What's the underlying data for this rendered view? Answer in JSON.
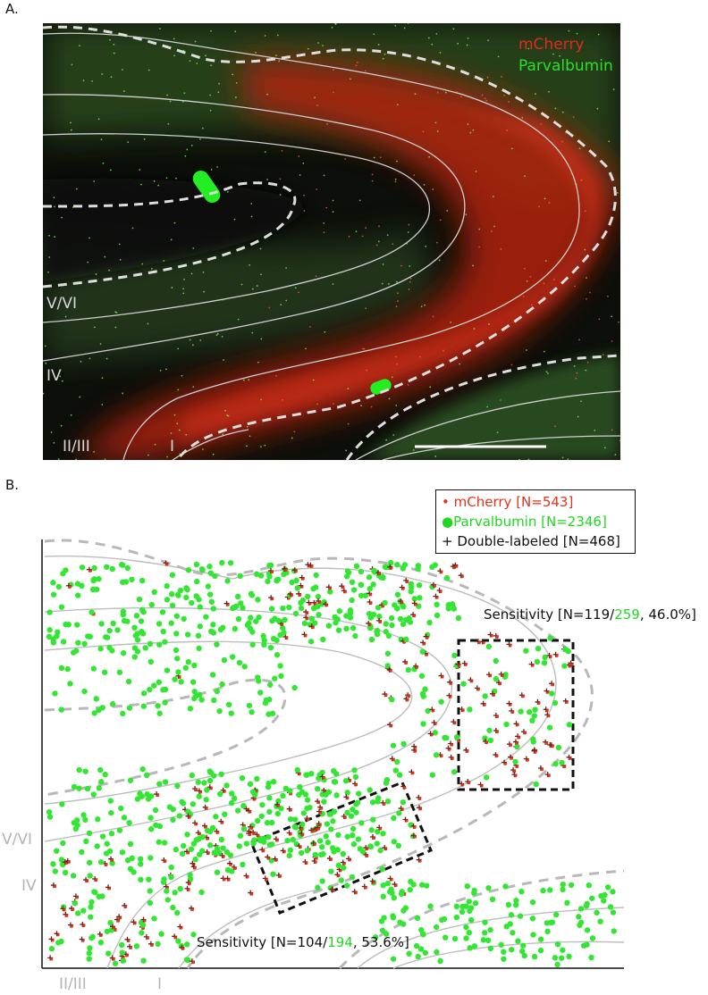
{
  "panel_a": {
    "letter": "A.",
    "legend": {
      "mcherry": "mCherry",
      "parvalbumin": "Parvalbumin"
    },
    "layers": [
      "V/VI",
      "IV",
      "II/III",
      "I"
    ],
    "colors": {
      "background": "#0c0f0a",
      "red": "#e52a12",
      "green": "#2bdc2b",
      "contour": "#cfcfcf"
    }
  },
  "panel_b": {
    "letter": "B.",
    "legend": {
      "mcherry": {
        "name": "mCherry",
        "count": "[N=543]"
      },
      "parvalbumin": {
        "name": "Parvalbumin",
        "count": "[N=2346]"
      },
      "double": {
        "symbol": "+",
        "name": "Double-labeled",
        "count": "[N=468]"
      }
    },
    "sensitivity_top": {
      "prefix": "Sensitivity [N=119/",
      "green": "259",
      "suffix": ", 46.0%]"
    },
    "sensitivity_bottom": {
      "prefix": "Sensitivity [N=104/",
      "green": "194",
      "suffix": ", 53.6%]"
    },
    "layers": [
      "V/VI",
      "IV",
      "II/III",
      "I"
    ],
    "colors": {
      "mcherry": "#e4331a",
      "parvalbumin": "#33e633",
      "double_cross": "#6b1e12",
      "contour": "#bdbdbd"
    }
  }
}
